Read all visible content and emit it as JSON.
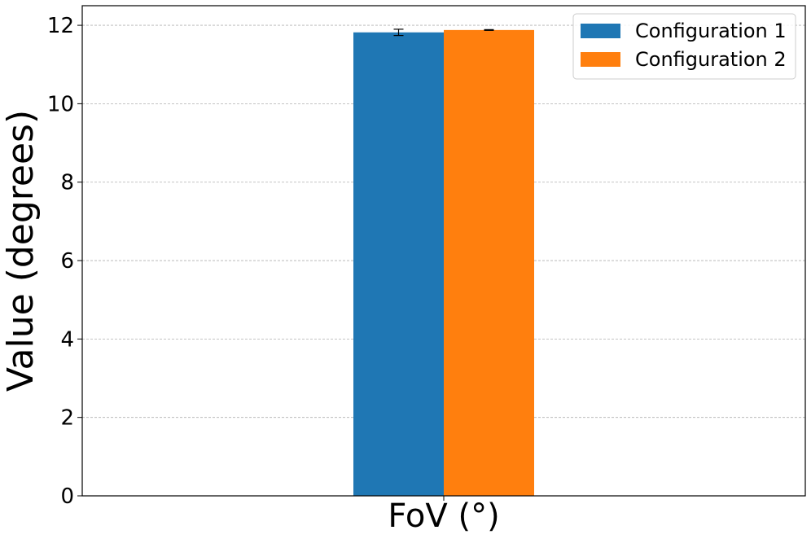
{
  "chart_data": {
    "type": "bar",
    "categories": [
      "FoV (°)"
    ],
    "series": [
      {
        "name": "Configuration 1",
        "values": [
          11.82
        ],
        "error": [
          0.08
        ],
        "color": "#1f77b4"
      },
      {
        "name": "Configuration 2",
        "values": [
          11.88
        ],
        "error": [
          0.01
        ],
        "color": "#ff7f0e"
      }
    ],
    "xlabel": "FoV (°)",
    "ylabel": "Value (degrees)",
    "ylim": [
      0,
      12.5
    ],
    "yticks": [
      "0",
      "2",
      "4",
      "6",
      "8",
      "10",
      "12"
    ],
    "grid": true,
    "legend_position": "top-right"
  }
}
